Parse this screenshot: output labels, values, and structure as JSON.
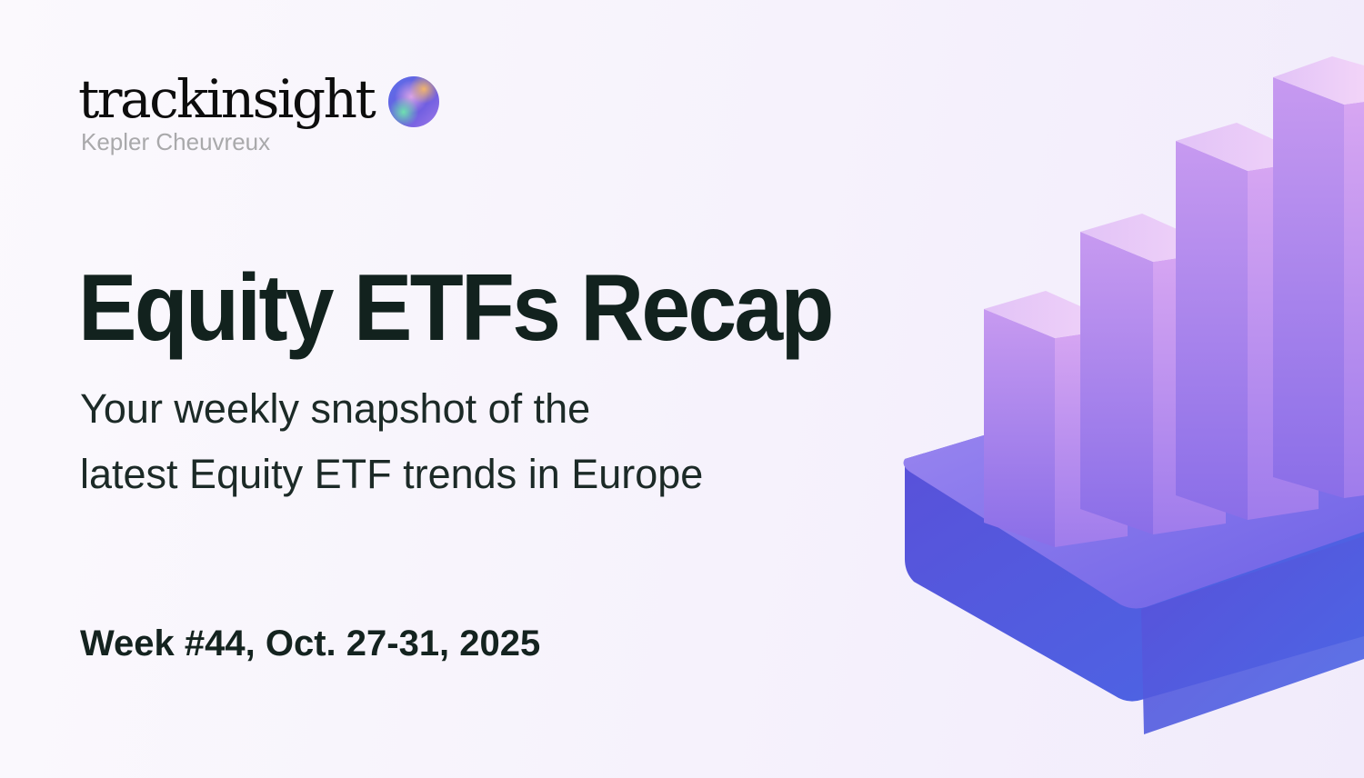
{
  "brand": {
    "name": "trackinsight",
    "partner": "Kepler Cheuvreux"
  },
  "title": "Equity ETFs Recap",
  "subtitle": {
    "line1": "Your weekly snapshot of the",
    "line2": "latest Equity ETF trends in Europe"
  },
  "week": "Week #44, Oct. 27-31, 2025",
  "colors": {
    "text": "#12221e",
    "partner_text": "#a9a9ab",
    "bar_purple": "#a77ae8",
    "base_blue": "#4b5be0"
  },
  "icons": {
    "logo": "gradient-orb-icon",
    "illustration": "3d-bar-chart-illustration"
  }
}
